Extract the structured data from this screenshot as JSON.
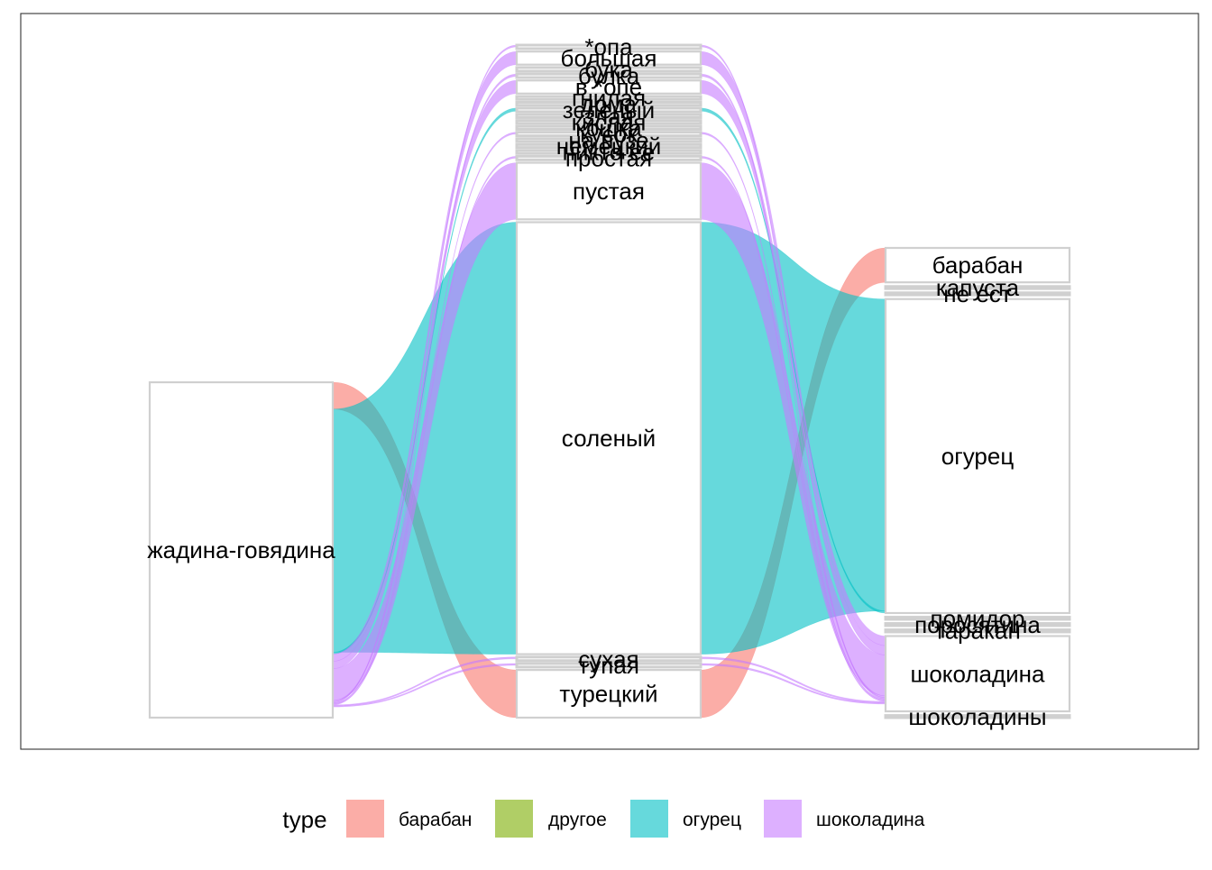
{
  "chart_data": {
    "type": "alluvial",
    "legend": {
      "title": "type",
      "placement": "bottom",
      "items": [
        {
          "label": "барабан",
          "color": "#F8766D"
        },
        {
          "label": "другое",
          "color": "#7CAE00"
        },
        {
          "label": "огурец",
          "color": "#00BFC4"
        },
        {
          "label": "шоколадина",
          "color": "#C77CFF"
        }
      ]
    },
    "axes": [
      {
        "strata": [
          {
            "label": "жадина-говядина",
            "value": 100
          }
        ]
      },
      {
        "strata": [
          {
            "label": "*опа",
            "value": 0.6
          },
          {
            "label": "большая",
            "value": 2.2
          },
          {
            "label": "бука",
            "value": 0.6
          },
          {
            "label": "булка",
            "value": 0.6
          },
          {
            "label": "в *опе",
            "value": 2.2
          },
          {
            "label": "гнилая",
            "value": 0.5
          },
          {
            "label": "дома",
            "value": 0.5
          },
          {
            "label": "зеленый",
            "value": 0.6
          },
          {
            "label": "злая",
            "value": 0.5
          },
          {
            "label": "кислая",
            "value": 0.5
          },
          {
            "label": "кошка",
            "value": 0.5
          },
          {
            "label": "кусок",
            "value": 0.6
          },
          {
            "label": "на пузе",
            "value": 0.5
          },
          {
            "label": "немецкий",
            "value": 0.5
          },
          {
            "label": "никто ее",
            "value": 0.5
          },
          {
            "label": "простая",
            "value": 0.6
          },
          {
            "label": "пустая",
            "value": 9.5
          },
          {
            "label": "соленый",
            "value": 72.5
          },
          {
            "label": "сухая",
            "value": 0.6
          },
          {
            "label": "тупая",
            "value": 0.6
          },
          {
            "label": "турецкий",
            "value": 8.0
          }
        ]
      },
      {
        "strata": [
          {
            "label": "барабан",
            "value": 8.0
          },
          {
            "label": "капуста",
            "value": 0.5
          },
          {
            "label": "не ест",
            "value": 0.5
          },
          {
            "label": "огурец",
            "value": 73.0
          },
          {
            "label": "помидор",
            "value": 0.5
          },
          {
            "label": "поросятина",
            "value": 0.5
          },
          {
            "label": "таракан",
            "value": 0.5
          },
          {
            "label": "шоколадина",
            "value": 17.5
          },
          {
            "label": "шоколадины",
            "value": 0.5
          }
        ]
      }
    ],
    "flows": [
      {
        "type": "барабан",
        "path": [
          "жадина-говядина",
          "турецкий",
          "барабан"
        ],
        "value": 8.0
      },
      {
        "type": "огурец",
        "path": [
          "жадина-говядина",
          "соленый",
          "огурец"
        ],
        "value": 72.5
      },
      {
        "type": "огурец",
        "path": [
          "жадина-говядина",
          "зеленый",
          "огурец"
        ],
        "value": 0.5
      },
      {
        "type": "шоколадина",
        "path": [
          "жадина-говядина",
          "большая",
          "шоколадина"
        ],
        "value": 2.2
      },
      {
        "type": "шоколадина",
        "path": [
          "жадина-говядина",
          "в *опе",
          "шоколадина"
        ],
        "value": 2.2
      },
      {
        "type": "шоколадина",
        "path": [
          "жадина-говядина",
          "пустая",
          "шоколадина"
        ],
        "value": 9.5
      },
      {
        "type": "шоколадина",
        "path": [
          "жадина-говядина",
          "булка",
          "шоколадина"
        ],
        "value": 0.4
      },
      {
        "type": "шоколадина",
        "path": [
          "жадина-говядина",
          "*опа",
          "шоколадина"
        ],
        "value": 0.3
      },
      {
        "type": "шоколадина",
        "path": [
          "жадина-говядина",
          "кусок",
          "шоколадина"
        ],
        "value": 0.3
      },
      {
        "type": "шоколадина",
        "path": [
          "жадина-говядина",
          "простая",
          "шоколадина"
        ],
        "value": 0.3
      },
      {
        "type": "шоколадина",
        "path": [
          "жадина-говядина",
          "сухая",
          "шоколадина"
        ],
        "value": 0.3
      },
      {
        "type": "шоколадина",
        "path": [
          "жадина-говядина",
          "тупая",
          "шоколадина"
        ],
        "value": 0.3
      }
    ]
  }
}
